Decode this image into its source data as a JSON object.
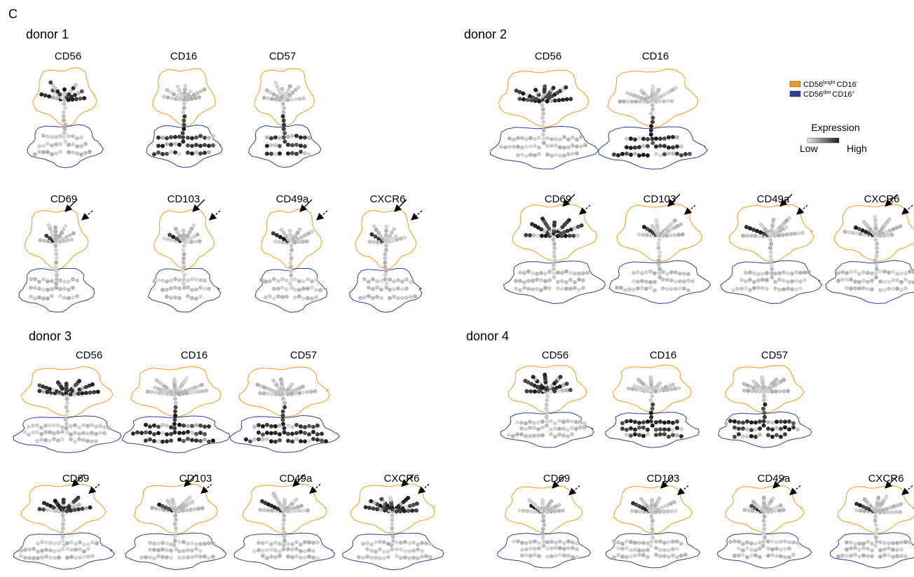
{
  "panel_label": "C",
  "legend": {
    "items": [
      {
        "marker1": "CD56",
        "state1": "bright",
        "marker2": "CD16",
        "state2": "-",
        "color": "#f39a1e"
      },
      {
        "marker1": "CD56",
        "state1": "dim",
        "marker2": "CD16",
        "state2": "+",
        "color": "#2b3f94"
      }
    ],
    "expression_title": "Expression",
    "low": "Low",
    "high": "High"
  },
  "donors": [
    {
      "title": "donor 1",
      "markers": [
        "CD56",
        "CD16",
        "CD57",
        "CD69",
        "CD103",
        "CD49a",
        "CXCR6"
      ]
    },
    {
      "title": "donor 2",
      "markers": [
        "CD56",
        "CD16",
        "CD69",
        "CD103",
        "CD49a",
        "CXCR6"
      ]
    },
    {
      "title": "donor 3",
      "markers": [
        "CD56",
        "CD16",
        "CD57",
        "CD69",
        "CD103",
        "CD49a",
        "CXCR6"
      ]
    },
    {
      "title": "donor 4",
      "markers": [
        "CD56",
        "CD16",
        "CD57",
        "CD69",
        "CD103",
        "CD49a",
        "CXCR6"
      ]
    }
  ]
}
